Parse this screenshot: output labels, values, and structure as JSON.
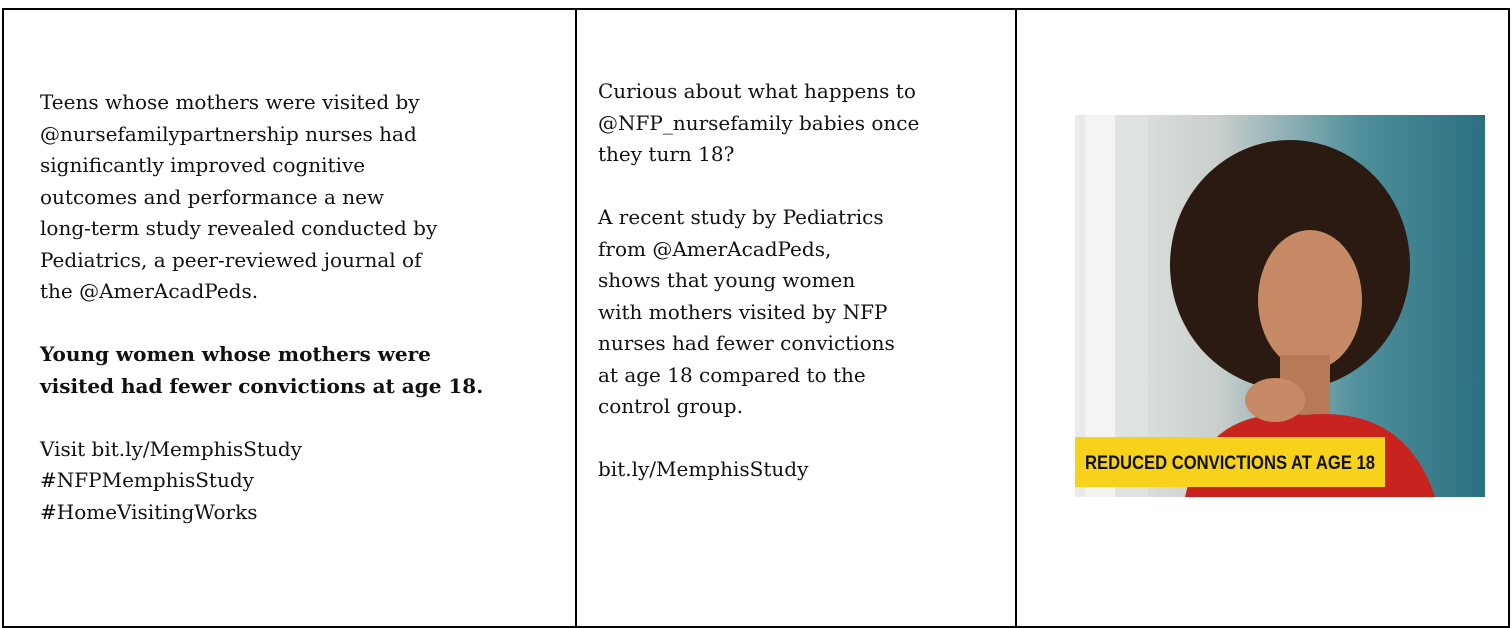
{
  "table": {
    "rows": [
      [
        {
          "paragraphs": [
            [
              "Teens whose mothers were visited by",
              "@nursefamilypartnership nurses had",
              "significantly improved cognitive",
              "outcomes and performance a new",
              "long-term study revealed conducted by",
              "Pediatrics, a peer-reviewed journal of",
              "the @AmerAcadPeds."
            ],
            [
              "Young women whose mothers were",
              "visited had fewer convictions at age 18."
            ],
            [
              "Visit bit.ly/MemphisStudy",
              "#NFPMemphisStudy",
              "#HomeVisitingWorks"
            ]
          ]
        },
        {
          "paragraphs": [
            [
              "Curious about what happens to",
              "@NFP_nursefamily babies once",
              "they turn 18?"
            ],
            [
              "A recent study by Pediatrics",
              "from @AmerAcadPeds,",
              "shows that young women",
              "with mothers visited by NFP",
              "nurses had fewer convictions",
              "at age 18 compared to the",
              "control group."
            ],
            [
              "bit.ly/MemphisStudy"
            ]
          ]
        },
        {
          "image_caption": "REDUCED CONVICTIONS AT AGE 18"
        }
      ]
    ]
  }
}
